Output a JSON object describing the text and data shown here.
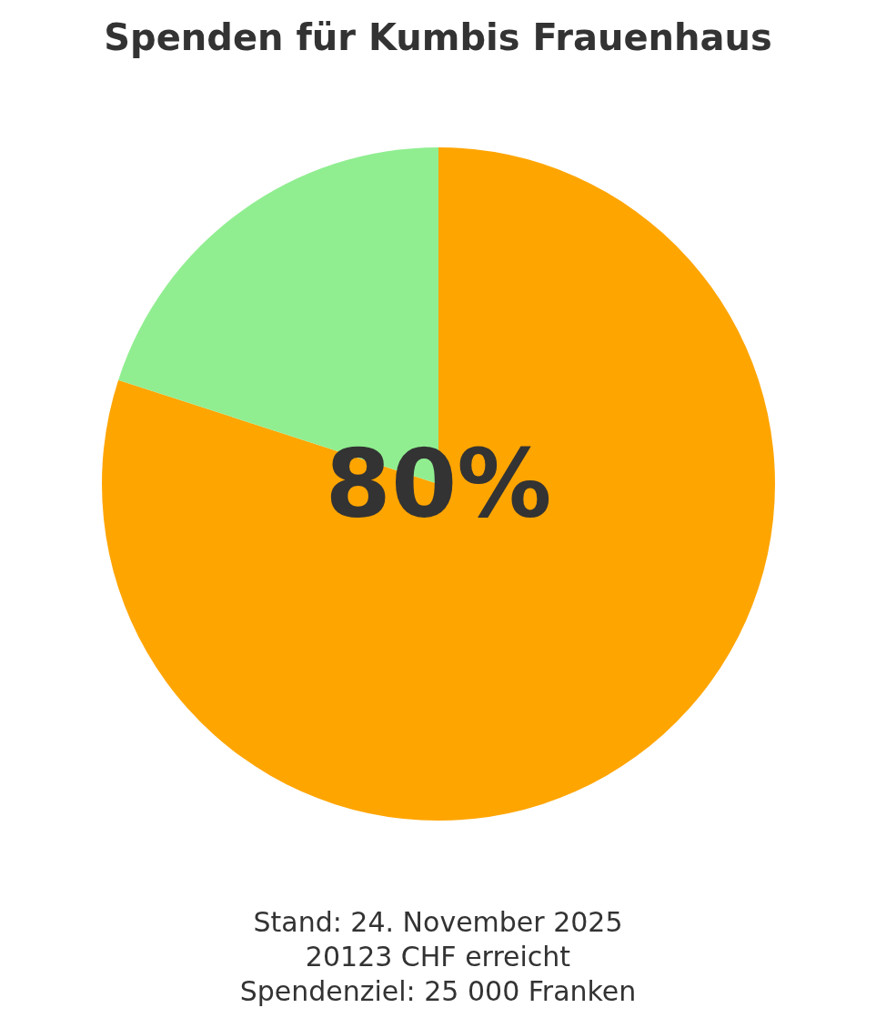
{
  "chart_data": {
    "type": "pie",
    "title": "Spenden für Kumbis Frauenhaus",
    "categories": [
      null,
      null
    ],
    "values": [
      80,
      20
    ],
    "colors": [
      "#ffa500",
      "#90ee90"
    ],
    "value_labels": [
      "80%",
      null
    ],
    "annotations": [
      "Stand: 24. November 2025",
      "20123 CHF erreicht",
      "Spendenziel: 25 000 Franken"
    ]
  }
}
